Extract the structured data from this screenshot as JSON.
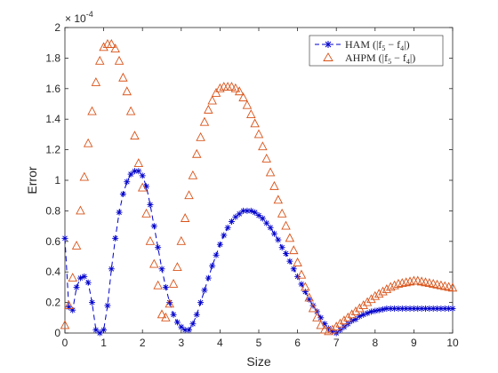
{
  "chart_data": {
    "type": "line",
    "title": "",
    "xlabel": "Size",
    "ylabel": "Error",
    "xlim": [
      0,
      10
    ],
    "ylim": [
      0,
      2
    ],
    "xticks": [
      "0",
      "1",
      "2",
      "3",
      "4",
      "5",
      "6",
      "7",
      "8",
      "9",
      "10"
    ],
    "yticks": [
      "0",
      "0.2",
      "0.4",
      "0.6",
      "0.8",
      "1",
      "1.2",
      "1.4",
      "1.6",
      "1.8",
      "2"
    ],
    "y_exponent_base": "× 10",
    "y_exponent_power": "-4",
    "legend_position": "top-right",
    "grid": false,
    "series": [
      {
        "name": "HAM (|f5 − f4|)",
        "name_parts": {
          "prefix": "HAM (|f",
          "sub1": "5",
          "mid": " − f",
          "sub2": "4",
          "suffix": "|)"
        },
        "color": "#0000cc",
        "marker": "asterisk",
        "line": "dashed",
        "x": [
          0.0,
          0.1,
          0.2,
          0.3,
          0.4,
          0.5,
          0.6,
          0.7,
          0.8,
          0.9,
          1.0,
          1.1,
          1.2,
          1.3,
          1.4,
          1.5,
          1.6,
          1.7,
          1.8,
          1.9,
          2.0,
          2.1,
          2.2,
          2.3,
          2.4,
          2.5,
          2.6,
          2.7,
          2.8,
          2.9,
          3.0,
          3.1,
          3.2,
          3.3,
          3.4,
          3.5,
          3.6,
          3.7,
          3.8,
          3.9,
          4.0,
          4.1,
          4.2,
          4.3,
          4.4,
          4.5,
          4.6,
          4.7,
          4.8,
          4.9,
          5.0,
          5.1,
          5.2,
          5.3,
          5.4,
          5.5,
          5.6,
          5.7,
          5.8,
          5.9,
          6.0,
          6.1,
          6.2,
          6.3,
          6.4,
          6.5,
          6.6,
          6.7,
          6.8,
          6.9,
          7.0,
          7.1,
          7.2,
          7.3,
          7.4,
          7.5,
          7.6,
          7.7,
          7.8,
          7.9,
          8.0,
          8.1,
          8.2,
          8.3,
          8.4,
          8.5,
          8.6,
          8.7,
          8.8,
          8.9,
          9.0,
          9.1,
          9.2,
          9.3,
          9.4,
          9.5,
          9.6,
          9.7,
          9.8,
          9.9,
          10.0
        ],
        "y": [
          0.62,
          0.17,
          0.15,
          0.3,
          0.36,
          0.37,
          0.33,
          0.2,
          0.02,
          0.0,
          0.02,
          0.18,
          0.42,
          0.62,
          0.79,
          0.91,
          0.99,
          1.04,
          1.06,
          1.06,
          1.03,
          0.96,
          0.84,
          0.7,
          0.56,
          0.42,
          0.3,
          0.2,
          0.12,
          0.07,
          0.04,
          0.02,
          0.02,
          0.06,
          0.12,
          0.2,
          0.28,
          0.36,
          0.44,
          0.51,
          0.58,
          0.64,
          0.69,
          0.73,
          0.76,
          0.78,
          0.8,
          0.8,
          0.8,
          0.79,
          0.77,
          0.75,
          0.72,
          0.69,
          0.65,
          0.61,
          0.56,
          0.52,
          0.47,
          0.42,
          0.37,
          0.32,
          0.27,
          0.22,
          0.18,
          0.14,
          0.1,
          0.06,
          0.03,
          0.01,
          0.0,
          0.02,
          0.04,
          0.06,
          0.08,
          0.09,
          0.11,
          0.12,
          0.13,
          0.14,
          0.145,
          0.15,
          0.155,
          0.16,
          0.16,
          0.16,
          0.16,
          0.16,
          0.16,
          0.16,
          0.16,
          0.16,
          0.16,
          0.16,
          0.16,
          0.16,
          0.16,
          0.16,
          0.16,
          0.16,
          0.16
        ]
      },
      {
        "name": "AHPM (|f5 − f4|)",
        "name_parts": {
          "prefix": "AHPM (|f",
          "sub1": "5",
          "mid": " − f",
          "sub2": "4",
          "suffix": "|)"
        },
        "color": "#d95319",
        "marker": "triangle",
        "line": "none",
        "x": [
          0.0,
          0.1,
          0.2,
          0.3,
          0.4,
          0.5,
          0.6,
          0.7,
          0.8,
          0.9,
          1.0,
          1.1,
          1.2,
          1.3,
          1.4,
          1.5,
          1.6,
          1.7,
          1.8,
          1.9,
          2.0,
          2.1,
          2.2,
          2.3,
          2.4,
          2.5,
          2.6,
          2.7,
          2.8,
          2.9,
          3.0,
          3.1,
          3.2,
          3.3,
          3.4,
          3.5,
          3.6,
          3.7,
          3.8,
          3.9,
          4.0,
          4.1,
          4.2,
          4.3,
          4.4,
          4.5,
          4.6,
          4.7,
          4.8,
          4.9,
          5.0,
          5.1,
          5.2,
          5.3,
          5.4,
          5.5,
          5.6,
          5.7,
          5.8,
          5.9,
          6.0,
          6.1,
          6.2,
          6.3,
          6.4,
          6.5,
          6.6,
          6.7,
          6.8,
          6.9,
          7.0,
          7.1,
          7.2,
          7.3,
          7.4,
          7.5,
          7.6,
          7.7,
          7.8,
          7.9,
          8.0,
          8.1,
          8.2,
          8.3,
          8.4,
          8.5,
          8.6,
          8.7,
          8.8,
          8.9,
          9.0,
          9.1,
          9.2,
          9.3,
          9.4,
          9.5,
          9.6,
          9.7,
          9.8,
          9.9,
          10.0
        ],
        "y": [
          0.05,
          0.18,
          0.36,
          0.57,
          0.8,
          1.02,
          1.24,
          1.45,
          1.64,
          1.78,
          1.87,
          1.89,
          1.89,
          1.86,
          1.78,
          1.67,
          1.58,
          1.45,
          1.29,
          1.11,
          0.95,
          0.78,
          0.6,
          0.45,
          0.31,
          0.12,
          0.1,
          0.19,
          0.32,
          0.43,
          0.6,
          0.75,
          0.9,
          1.03,
          1.17,
          1.28,
          1.38,
          1.46,
          1.52,
          1.57,
          1.6,
          1.61,
          1.61,
          1.61,
          1.6,
          1.58,
          1.54,
          1.49,
          1.43,
          1.37,
          1.3,
          1.22,
          1.14,
          1.05,
          0.96,
          0.87,
          0.78,
          0.7,
          0.62,
          0.54,
          0.46,
          0.38,
          0.3,
          0.23,
          0.16,
          0.1,
          0.05,
          0.02,
          0.01,
          0.02,
          0.04,
          0.06,
          0.08,
          0.1,
          0.12,
          0.14,
          0.16,
          0.18,
          0.2,
          0.22,
          0.24,
          0.255,
          0.27,
          0.285,
          0.3,
          0.31,
          0.32,
          0.325,
          0.33,
          0.335,
          0.34,
          0.34,
          0.335,
          0.33,
          0.325,
          0.32,
          0.315,
          0.31,
          0.305,
          0.3,
          0.295
        ]
      }
    ]
  }
}
